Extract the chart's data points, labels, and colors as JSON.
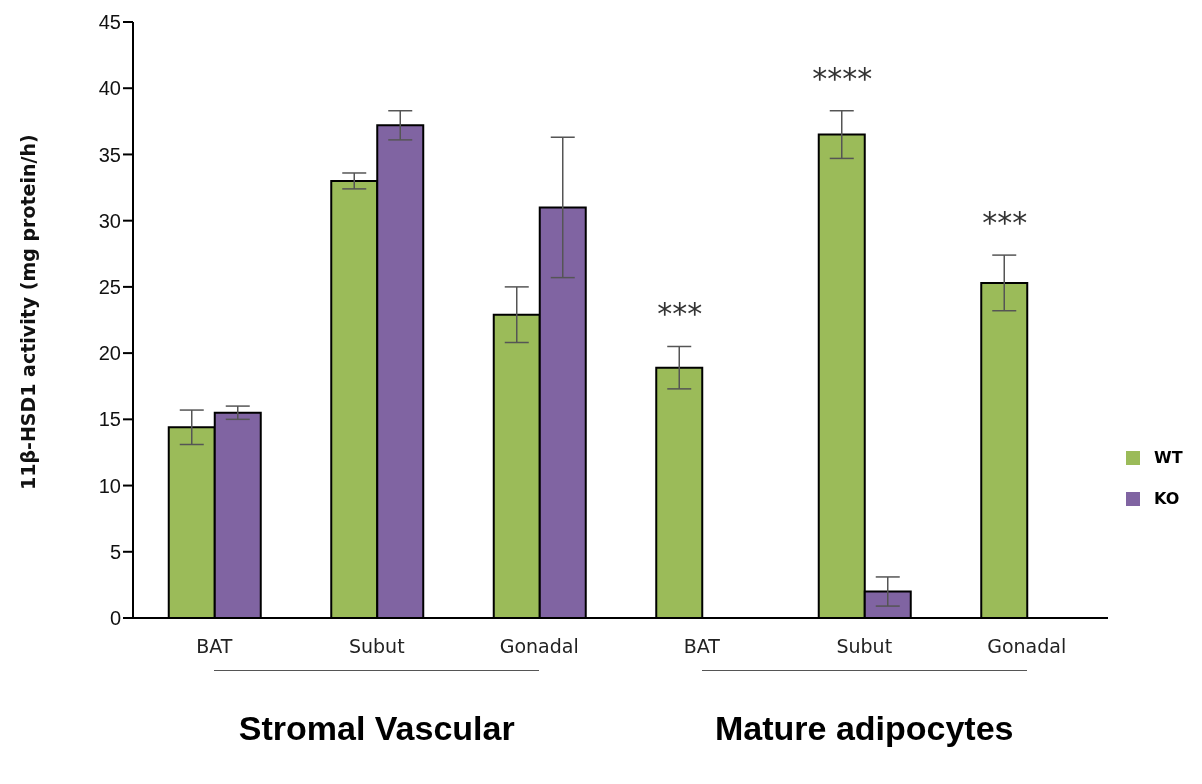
{
  "chart_data": {
    "type": "bar",
    "ylabel": "11β-HSD1 activity (mg protein/h)",
    "categories": [
      "BAT",
      "Subut",
      "Gonadal",
      "BAT",
      "Subut",
      "Gonadal"
    ],
    "series": [
      {
        "name": "WT",
        "color": "#9bbb59",
        "values": [
          14.4,
          33.0,
          22.9,
          18.9,
          36.5,
          25.3
        ],
        "errors": [
          1.3,
          0.6,
          2.1,
          1.6,
          1.8,
          2.1
        ]
      },
      {
        "name": "KO",
        "color": "#8064a2",
        "values": [
          15.5,
          37.2,
          31.0,
          null,
          2.0,
          null
        ],
        "errors": [
          0.5,
          1.1,
          5.3,
          null,
          1.1,
          null
        ]
      }
    ],
    "ylim": [
      0,
      45
    ],
    "yticks": [
      0,
      5,
      10,
      15,
      20,
      25,
      30,
      35,
      40,
      45
    ],
    "grid": false,
    "legend": "right",
    "annotations": [
      "***",
      "****",
      "***",
      "Stromal Vascular",
      "Mature adipocytes"
    ]
  }
}
